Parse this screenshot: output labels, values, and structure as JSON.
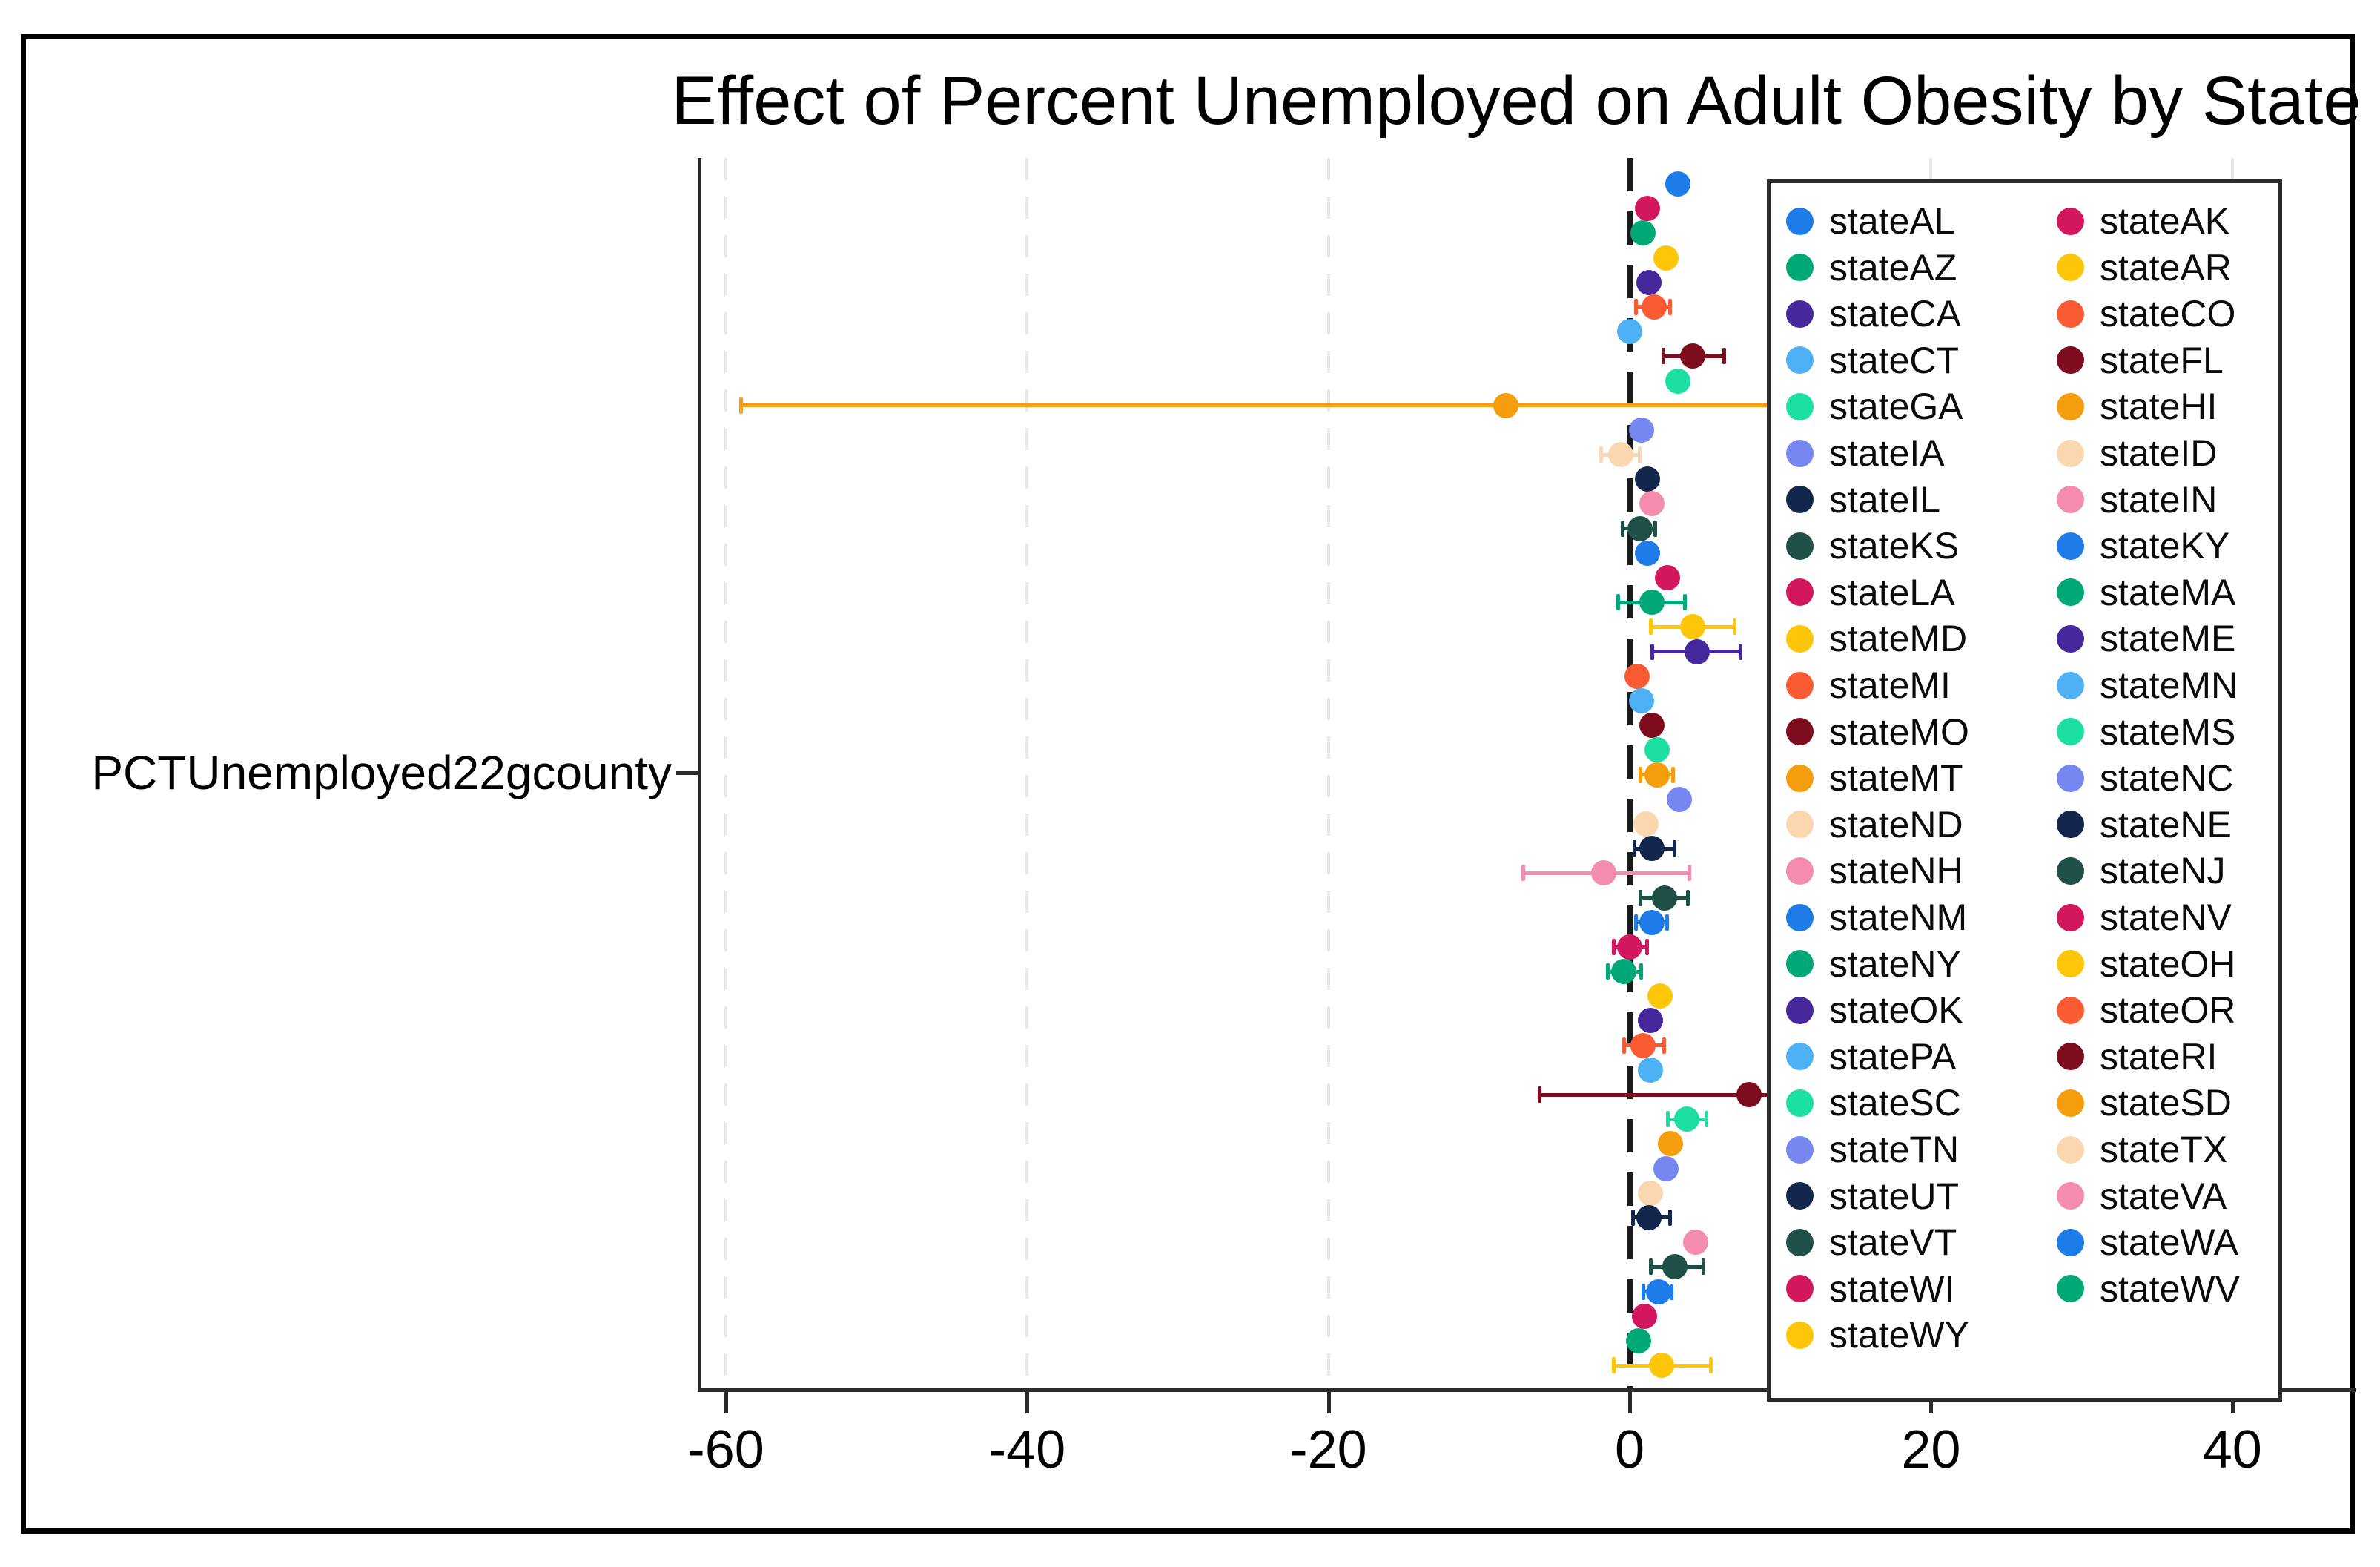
{
  "chart_data": {
    "type": "scatter",
    "subtype": "dot-whisker-coefficient-plot",
    "title": "Effect of Percent Unemployed on Adult Obesity by State",
    "y_axis_label": "PCTUnemployed22gcounty",
    "x_ticks": [
      -60,
      -40,
      -20,
      0,
      20,
      40
    ],
    "xlim": [
      -62,
      48
    ],
    "zero_reference_line": true,
    "grid": "vertical-dashed",
    "legend_position": "right-inside",
    "legend_columns": 2,
    "frame_color": "#000000",
    "background_color": "#ffffff",
    "series": [
      {
        "state": "AL",
        "label": "stateAL",
        "color": "#1E7CE8",
        "value": 3.2,
        "ci_low": 3.2,
        "ci_high": 3.2
      },
      {
        "state": "AK",
        "label": "stateAK",
        "color": "#D2175E",
        "value": 1.2,
        "ci_low": 1.2,
        "ci_high": 1.2
      },
      {
        "state": "AZ",
        "label": "stateAZ",
        "color": "#00A878",
        "value": 0.9,
        "ci_low": 0.9,
        "ci_high": 0.9
      },
      {
        "state": "AR",
        "label": "stateAR",
        "color": "#FDC608",
        "value": 2.4,
        "ci_low": 2.4,
        "ci_high": 2.4
      },
      {
        "state": "CA",
        "label": "stateCA",
        "color": "#46289C",
        "value": 1.3,
        "ci_low": 1.3,
        "ci_high": 1.3
      },
      {
        "state": "CO",
        "label": "stateCO",
        "color": "#FB5B32",
        "value": 1.6,
        "ci_low": 0.4,
        "ci_high": 2.7
      },
      {
        "state": "CT",
        "label": "stateCT",
        "color": "#4FB1F5",
        "value": 0.0,
        "ci_low": 0.0,
        "ci_high": 0.0
      },
      {
        "state": "FL",
        "label": "stateFL",
        "color": "#7D0C1F",
        "value": 4.2,
        "ci_low": 2.2,
        "ci_high": 6.3
      },
      {
        "state": "GA",
        "label": "stateGA",
        "color": "#1BE0A1",
        "value": 3.2,
        "ci_low": 3.2,
        "ci_high": 3.2
      },
      {
        "state": "HI",
        "label": "stateHI",
        "color": "#F49D0D",
        "value": -8.2,
        "ci_low": -59.0,
        "ci_high": 10.0
      },
      {
        "state": "IA",
        "label": "stateIA",
        "color": "#7787F2",
        "value": 0.8,
        "ci_low": 0.8,
        "ci_high": 0.8
      },
      {
        "state": "ID",
        "label": "stateID",
        "color": "#FAD7AE",
        "value": -0.6,
        "ci_low": -1.9,
        "ci_high": 0.7
      },
      {
        "state": "IL",
        "label": "stateIL",
        "color": "#13264C",
        "value": 1.2,
        "ci_low": 1.2,
        "ci_high": 1.2
      },
      {
        "state": "IN",
        "label": "stateIN",
        "color": "#F48CAE",
        "value": 1.5,
        "ci_low": 1.5,
        "ci_high": 1.5
      },
      {
        "state": "KS",
        "label": "stateKS",
        "color": "#1E5047",
        "value": 0.7,
        "ci_low": -0.5,
        "ci_high": 1.7
      },
      {
        "state": "KY",
        "label": "stateKY",
        "color": "#1E7CE8",
        "value": 1.2,
        "ci_low": 1.2,
        "ci_high": 1.2
      },
      {
        "state": "LA",
        "label": "stateLA",
        "color": "#D2175E",
        "value": 2.5,
        "ci_low": 2.5,
        "ci_high": 2.5
      },
      {
        "state": "MA",
        "label": "stateMA",
        "color": "#00A878",
        "value": 1.5,
        "ci_low": -0.8,
        "ci_high": 3.7
      },
      {
        "state": "MD",
        "label": "stateMD",
        "color": "#FDC608",
        "value": 4.2,
        "ci_low": 1.4,
        "ci_high": 7.0
      },
      {
        "state": "ME",
        "label": "stateME",
        "color": "#46289C",
        "value": 4.5,
        "ci_low": 1.5,
        "ci_high": 7.4
      },
      {
        "state": "MI",
        "label": "stateMI",
        "color": "#FB5B32",
        "value": 0.5,
        "ci_low": 0.5,
        "ci_high": 0.5
      },
      {
        "state": "MN",
        "label": "stateMN",
        "color": "#4FB1F5",
        "value": 0.8,
        "ci_low": 0.8,
        "ci_high": 0.8
      },
      {
        "state": "MO",
        "label": "stateMO",
        "color": "#7D0C1F",
        "value": 1.5,
        "ci_low": 1.5,
        "ci_high": 1.5
      },
      {
        "state": "MS",
        "label": "stateMS",
        "color": "#1BE0A1",
        "value": 1.8,
        "ci_low": 1.8,
        "ci_high": 1.8
      },
      {
        "state": "MT",
        "label": "stateMT",
        "color": "#F49D0D",
        "value": 1.8,
        "ci_low": 0.7,
        "ci_high": 2.9
      },
      {
        "state": "NC",
        "label": "stateNC",
        "color": "#7787F2",
        "value": 3.3,
        "ci_low": 3.3,
        "ci_high": 3.3
      },
      {
        "state": "ND",
        "label": "stateND",
        "color": "#FAD7AE",
        "value": 1.1,
        "ci_low": 1.1,
        "ci_high": 1.1
      },
      {
        "state": "NE",
        "label": "stateNE",
        "color": "#13264C",
        "value": 1.5,
        "ci_low": 0.3,
        "ci_high": 3.0
      },
      {
        "state": "NH",
        "label": "stateNH",
        "color": "#F48CAE",
        "value": -1.7,
        "ci_low": -7.1,
        "ci_high": 4.0
      },
      {
        "state": "NJ",
        "label": "stateNJ",
        "color": "#1E5047",
        "value": 2.3,
        "ci_low": 0.7,
        "ci_high": 3.9
      },
      {
        "state": "NM",
        "label": "stateNM",
        "color": "#1E7CE8",
        "value": 1.5,
        "ci_low": 0.4,
        "ci_high": 2.5
      },
      {
        "state": "NV",
        "label": "stateNV",
        "color": "#D2175E",
        "value": 0.0,
        "ci_low": -1.1,
        "ci_high": 1.2
      },
      {
        "state": "NY",
        "label": "stateNY",
        "color": "#00A878",
        "value": -0.4,
        "ci_low": -1.5,
        "ci_high": 0.8
      },
      {
        "state": "OH",
        "label": "stateOH",
        "color": "#FDC608",
        "value": 2.0,
        "ci_low": 2.0,
        "ci_high": 2.0
      },
      {
        "state": "OK",
        "label": "stateOK",
        "color": "#46289C",
        "value": 1.4,
        "ci_low": 1.4,
        "ci_high": 1.4
      },
      {
        "state": "OR",
        "label": "stateOR",
        "color": "#FB5B32",
        "value": 0.9,
        "ci_low": -0.4,
        "ci_high": 2.3
      },
      {
        "state": "PA",
        "label": "statePA",
        "color": "#4FB1F5",
        "value": 1.4,
        "ci_low": 1.4,
        "ci_high": 1.4
      },
      {
        "state": "RI",
        "label": "stateRI",
        "color": "#7D0C1F",
        "value": 7.9,
        "ci_low": -6.0,
        "ci_high": 9.5
      },
      {
        "state": "SC",
        "label": "stateSC",
        "color": "#1BE0A1",
        "value": 3.8,
        "ci_low": 2.5,
        "ci_high": 5.1
      },
      {
        "state": "SD",
        "label": "stateSD",
        "color": "#F49D0D",
        "value": 2.7,
        "ci_low": 2.7,
        "ci_high": 2.7
      },
      {
        "state": "TN",
        "label": "stateTN",
        "color": "#7787F2",
        "value": 2.4,
        "ci_low": 2.4,
        "ci_high": 2.4
      },
      {
        "state": "TX",
        "label": "stateTX",
        "color": "#FAD7AE",
        "value": 1.4,
        "ci_low": 1.4,
        "ci_high": 1.4
      },
      {
        "state": "UT",
        "label": "stateUT",
        "color": "#13264C",
        "value": 1.3,
        "ci_low": 0.2,
        "ci_high": 2.7
      },
      {
        "state": "VA",
        "label": "stateVA",
        "color": "#F48CAE",
        "value": 4.4,
        "ci_low": 4.4,
        "ci_high": 4.4
      },
      {
        "state": "VT",
        "label": "stateVT",
        "color": "#1E5047",
        "value": 3.0,
        "ci_low": 1.4,
        "ci_high": 4.9
      },
      {
        "state": "WA",
        "label": "stateWA",
        "color": "#1E7CE8",
        "value": 1.9,
        "ci_low": 0.9,
        "ci_high": 2.8
      },
      {
        "state": "WI",
        "label": "stateWI",
        "color": "#D2175E",
        "value": 1.0,
        "ci_low": 1.0,
        "ci_high": 1.0
      },
      {
        "state": "WV",
        "label": "stateWV",
        "color": "#00A878",
        "value": 0.6,
        "ci_low": 0.6,
        "ci_high": 0.6
      },
      {
        "state": "WY",
        "label": "stateWY",
        "color": "#FDC608",
        "value": 2.1,
        "ci_low": -1.1,
        "ci_high": 5.4
      }
    ]
  }
}
